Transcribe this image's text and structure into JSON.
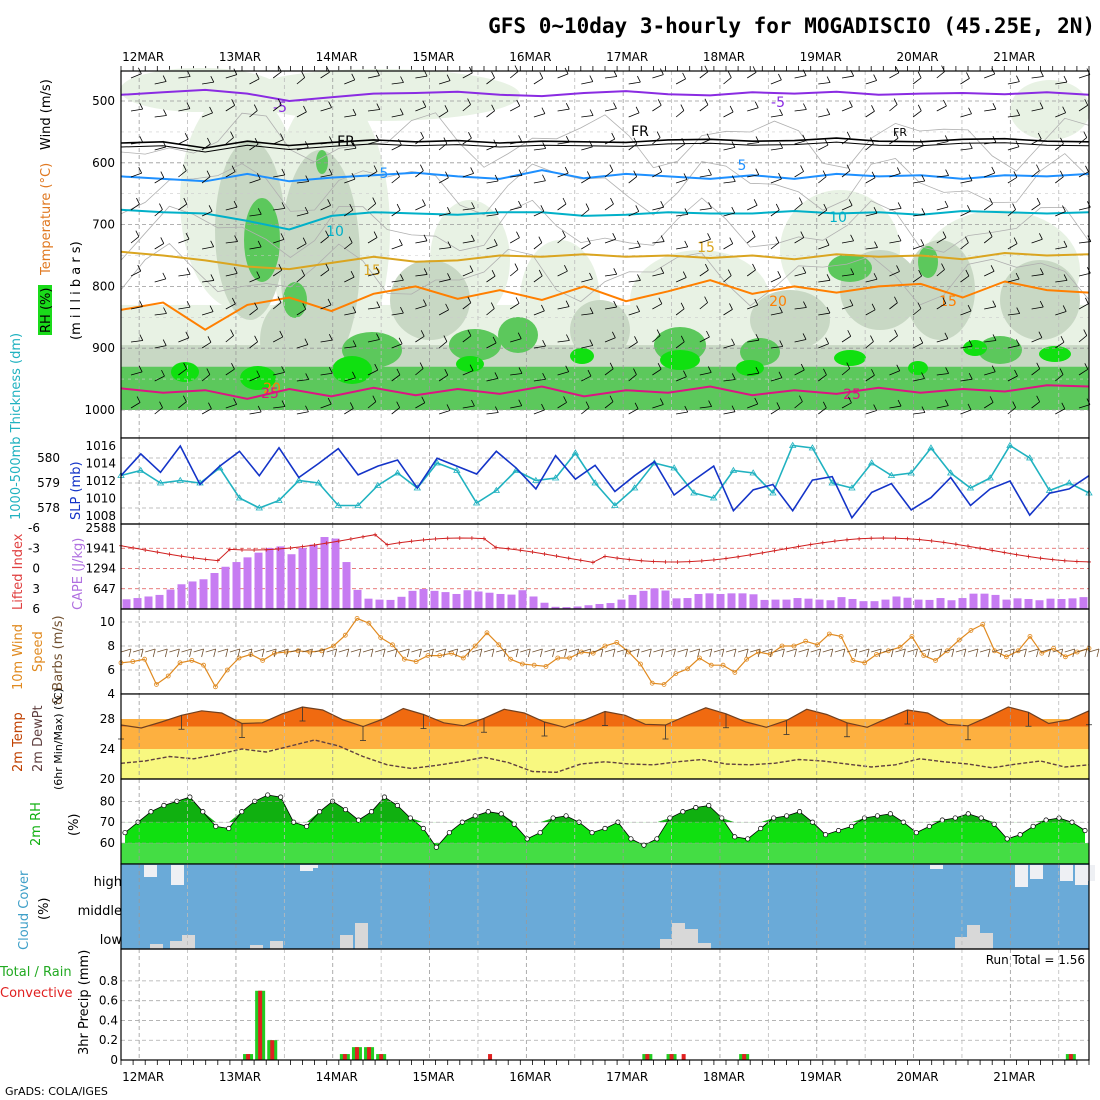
{
  "title": "GFS 0~10day 3-hourly for MOGADISCIO (45.25E, 2N)",
  "credit": "GrADS: COLA/IGES",
  "dates": [
    "12MAR",
    "13MAR",
    "14MAR",
    "15MAR",
    "16MAR",
    "17MAR",
    "18MAR",
    "19MAR",
    "20MAR",
    "21MAR"
  ],
  "colors": {
    "rh_light": "#e8f2e4",
    "rh_mid": "#c8d8c4",
    "rh_dark": "#5cc85c",
    "rh_bright": "#10e010",
    "frame": "#000000"
  },
  "panels": {
    "upper_air": {
      "ylabel_parts": [
        "RH (%)",
        "Temperature (°C)",
        "Wind (m/s)",
        "(m i l l i b a r s)"
      ],
      "yticks": [
        500,
        600,
        700,
        800,
        900,
        1000
      ],
      "isotherms": [
        {
          "label": "-5",
          "color": "#8a2be2",
          "p": [
            490,
            486,
            482,
            488,
            500,
            494,
            488,
            487,
            485,
            490,
            492,
            487,
            484,
            489,
            491,
            486,
            488,
            485,
            490,
            488,
            487,
            489,
            486,
            490
          ]
        },
        {
          "label": "FR",
          "color": "#000000",
          "p": [
            568,
            566,
            576,
            565,
            572,
            567,
            563,
            566,
            564,
            568,
            565,
            566,
            567,
            563,
            562,
            565,
            564,
            560,
            565,
            566,
            562,
            561,
            565,
            566
          ]
        },
        {
          "label": "5",
          "color": "#1e90ff",
          "p": [
            622,
            626,
            630,
            618,
            630,
            624,
            620,
            616,
            622,
            626,
            612,
            625,
            618,
            622,
            626,
            620,
            626,
            618,
            622,
            620,
            626,
            620,
            622,
            618
          ]
        },
        {
          "label": "10",
          "color": "#00b0c8",
          "p": [
            676,
            680,
            682,
            694,
            708,
            686,
            680,
            682,
            684,
            680,
            680,
            686,
            684,
            680,
            682,
            682,
            678,
            682,
            680,
            684,
            678,
            680,
            682,
            680
          ]
        },
        {
          "label": "15",
          "color": "#daa520",
          "p": [
            744,
            750,
            758,
            768,
            772,
            762,
            752,
            760,
            758,
            750,
            752,
            748,
            752,
            750,
            754,
            750,
            756,
            748,
            752,
            750,
            756,
            746,
            750,
            748
          ]
        },
        {
          "label": "20",
          "color": "#ff7f00",
          "p": [
            838,
            826,
            870,
            830,
            818,
            840,
            812,
            800,
            820,
            806,
            822,
            800,
            824,
            808,
            790,
            812,
            800,
            810,
            800,
            796,
            818,
            792,
            806,
            810
          ]
        },
        {
          "label": "25",
          "color": "#dc1482",
          "p": [
            965,
            972,
            968,
            982,
            966,
            978,
            964,
            976,
            966,
            974,
            962,
            978,
            968,
            972,
            962,
            976,
            968,
            974,
            964,
            972,
            966,
            970,
            960,
            962
          ]
        }
      ]
    },
    "thickness_slp": {
      "ylabel_left": "1000-500mb Thickness (dm)",
      "ylabel_right": "SLP (mb)",
      "yticks_left": [
        578,
        579,
        580
      ],
      "yticks_right": [
        1008,
        1010,
        1012,
        1014,
        1016
      ],
      "series": [
        {
          "name": "Thickness",
          "color": "#20b2c0",
          "values": [
            579.3,
            579.5,
            579.0,
            579.1,
            579.0,
            579.6,
            578.4,
            578.0,
            578.3,
            579.1,
            579.0,
            578.1,
            578.1,
            578.9,
            579.4,
            578.8,
            579.8,
            579.5,
            578.2,
            578.7,
            579.5,
            579.1,
            579.2,
            580.2,
            579.0,
            578.1,
            578.8,
            579.8,
            579.6,
            578.6,
            578.4,
            579.5,
            579.4,
            578.6,
            580.5,
            580.4,
            579.0,
            578.8,
            579.8,
            579.3,
            579.4,
            580.4,
            579.4,
            578.8,
            579.2,
            580.5,
            580.0,
            578.7,
            579.0,
            578.6
          ]
        },
        {
          "name": "SLP",
          "color": "#1434c8",
          "values": [
            1012.6,
            1015.1,
            1013.0,
            1016.0,
            1011.6,
            1013.7,
            1015.4,
            1012.6,
            1015.8,
            1012.4,
            1014.0,
            1015.7,
            1012.7,
            1013.7,
            1014.4,
            1011.2,
            1014.6,
            1013.7,
            1012.8,
            1015.4,
            1013.5,
            1011.1,
            1014.9,
            1012.2,
            1013.8,
            1010.8,
            1012.6,
            1014.2,
            1010.4,
            1012.1,
            1013.7,
            1008.6,
            1011.0,
            1011.6,
            1008.6,
            1012.1,
            1012.5,
            1007.8,
            1010.7,
            1011.7,
            1008.7,
            1010.1,
            1012.4,
            1009.2,
            1011.1,
            1012.0,
            1008.1,
            1010.6,
            1011.1,
            1012.6
          ]
        }
      ]
    },
    "cape_li": {
      "ylabel_left": "Lifted Index",
      "ylabel_right": "CAPE (J/kg)",
      "yticks_left": [
        "-6",
        "-3",
        "0",
        "3",
        "6"
      ],
      "yticks_right": [
        "2588",
        "1941",
        "1294",
        "647"
      ],
      "cape": [
        310,
        350,
        400,
        450,
        620,
        790,
        880,
        950,
        1150,
        1350,
        1500,
        1650,
        1800,
        1950,
        2000,
        1750,
        1950,
        2060,
        2300,
        2250,
        1500,
        610,
        330,
        300,
        290,
        390,
        580,
        640,
        580,
        540,
        480,
        600,
        560,
        520,
        480,
        460,
        600,
        400,
        200,
        70,
        60,
        80,
        120,
        160,
        190,
        300,
        450,
        580,
        660,
        590,
        340,
        350,
        480,
        500,
        480,
        500,
        500,
        470,
        290,
        300,
        300,
        350,
        330,
        300,
        280,
        380,
        320,
        250,
        250,
        300,
        400,
        360,
        300,
        290,
        350,
        280,
        350,
        490,
        490,
        450,
        300,
        340,
        320,
        280,
        330,
        320,
        340,
        380
      ]
    },
    "wind10m": {
      "ylabel": [
        "10m Wind",
        "Speed",
        "& Barbs (m/s)"
      ],
      "yticks": [
        4,
        6,
        8,
        10
      ],
      "speed": [
        6.6,
        6.7,
        6.9,
        4.8,
        5.5,
        6.6,
        6.8,
        6.4,
        4.6,
        6.0,
        7.0,
        7.3,
        6.8,
        7.4,
        7.5,
        7.6,
        7.5,
        7.6,
        8.0,
        8.9,
        10.3,
        9.9,
        8.7,
        8.1,
        6.9,
        6.7,
        7.2,
        7.2,
        7.4,
        7.0,
        8.0,
        9.1,
        8.1,
        6.9,
        6.5,
        6.4,
        6.3,
        7.0,
        7.0,
        7.5,
        7.4,
        8.0,
        8.3,
        7.5,
        6.5,
        4.9,
        4.8,
        5.7,
        6.1,
        7.0,
        6.4,
        6.4,
        5.8,
        6.9,
        7.5,
        7.3,
        8.0,
        8.0,
        8.4,
        8.1,
        9.0,
        8.8,
        6.8,
        6.6,
        7.3,
        7.6,
        7.9,
        8.8,
        7.2,
        6.8,
        7.6,
        8.5,
        9.3,
        9.8,
        7.6,
        7.1,
        7.6,
        8.8,
        7.4,
        7.8,
        7.1,
        7.5,
        7.8
      ]
    },
    "temp2m": {
      "ylabel": [
        "2m Temp",
        "2m DewPt",
        "(6hr Min/Max) (°C)"
      ],
      "yticks": [
        20,
        24,
        28
      ],
      "temp": [
        27.2,
        26.8,
        27.6,
        28.5,
        29.1,
        28.8,
        27.4,
        27.5,
        28.7,
        29.6,
        29.2,
        27.9,
        27.0,
        28.0,
        29.4,
        28.6,
        27.5,
        27.1,
        28.1,
        29.3,
        28.8,
        27.6,
        26.9,
        27.9,
        29.0,
        28.5,
        27.3,
        27.2,
        28.4,
        29.5,
        28.7,
        27.6,
        26.9,
        27.8,
        29.3,
        28.6,
        27.5,
        26.9,
        28.1,
        29.2,
        28.8,
        27.3,
        27.1,
        28.3,
        29.6,
        28.9,
        27.4,
        27.9,
        29.1
      ],
      "dewpt": [
        22.1,
        22.4,
        23.0,
        22.7,
        23.3,
        24.0,
        23.6,
        24.4,
        25.2,
        24.4,
        23.0,
        21.9,
        21.4,
        21.8,
        22.3,
        22.9,
        22.2,
        21.0,
        20.9,
        22.0,
        22.3,
        22.0,
        21.9,
        22.3,
        22.6,
        22.0,
        21.9,
        22.1,
        22.6,
        22.4,
        22.0,
        21.6,
        21.9,
        22.7,
        22.3,
        22.0,
        21.5,
        22.0,
        22.4,
        21.6,
        21.9
      ]
    },
    "rh2m": {
      "ylabel": [
        "2m RH",
        "(%)"
      ],
      "yticks": [
        60,
        70,
        80
      ],
      "values": [
        65,
        70,
        75,
        78,
        80,
        82,
        75,
        68,
        67,
        75,
        80,
        83,
        82,
        70,
        68,
        75,
        80,
        76,
        71,
        75,
        82,
        78,
        72,
        67,
        58,
        65,
        70,
        73,
        75,
        74,
        69,
        62,
        65,
        72,
        73,
        70,
        65,
        67,
        70,
        62,
        59,
        62,
        72,
        75,
        77,
        78,
        72,
        63,
        62,
        67,
        72,
        73,
        75,
        70,
        64,
        66,
        68,
        72,
        73,
        74,
        70,
        65,
        68,
        71,
        72,
        74,
        72,
        69,
        62,
        64,
        68,
        71,
        72,
        70,
        66
      ]
    },
    "cloud": {
      "ylabel": [
        "Cloud Cover",
        "(%)"
      ],
      "levels": [
        "high",
        "middle",
        "low"
      ]
    },
    "precip": {
      "ylabel_left": [
        "Total / Rain",
        "Convective"
      ],
      "ylabel_right": "3hr Precip (mm)",
      "yticks": [
        "0",
        "0.2",
        "0.4",
        "0.6",
        "0.8"
      ],
      "run_total": "Run Total = 1.56",
      "bars": [
        {
          "t": 10.5,
          "total": 0.06
        },
        {
          "t": 11.5,
          "total": 0.7
        },
        {
          "t": 12.5,
          "total": 0.2
        },
        {
          "t": 18.5,
          "total": 0.06
        },
        {
          "t": 19.5,
          "total": 0.13
        },
        {
          "t": 20.5,
          "total": 0.13
        },
        {
          "t": 21.5,
          "total": 0.06
        },
        {
          "t": 30.5,
          "total": 0.0,
          "conv": 0.06
        },
        {
          "t": 43.5,
          "total": 0.06
        },
        {
          "t": 45.5,
          "total": 0.06
        },
        {
          "t": 46.5,
          "total": 0.0,
          "conv": 0.06
        },
        {
          "t": 51.5,
          "total": 0.06
        },
        {
          "t": 78.5,
          "total": 0.06
        }
      ]
    }
  }
}
